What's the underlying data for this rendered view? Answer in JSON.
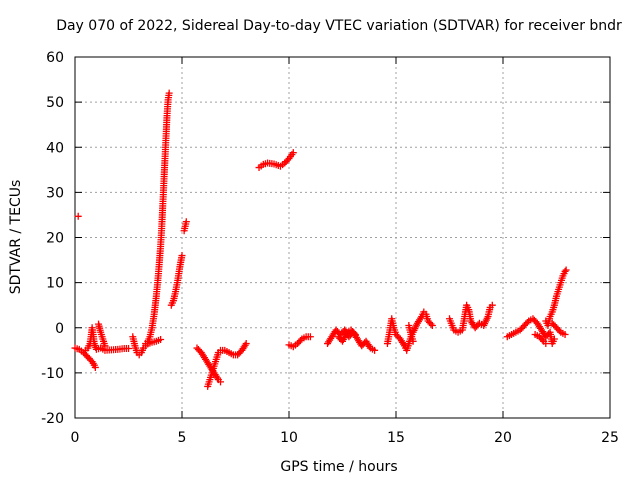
{
  "chart_data": {
    "type": "scatter",
    "title": "Day 070 of 2022, Sidereal Day-to-day VTEC variation (SDTVAR) for receiver bndr",
    "xlabel": "GPS time / hours",
    "ylabel": "SDTVAR / TECUs",
    "xlim": [
      0,
      25
    ],
    "ylim": [
      -20,
      60
    ],
    "xticks": [
      0,
      5,
      10,
      15,
      20,
      25
    ],
    "yticks": [
      -20,
      -10,
      0,
      10,
      20,
      30,
      40,
      50,
      60
    ],
    "grid": true,
    "marker": "+",
    "marker_color": "#ff0000",
    "series": [
      {
        "name": "SDTVAR",
        "segments": [
          [
            [
              0.15,
              24.7
            ]
          ],
          [
            [
              0.0,
              -4.5
            ],
            [
              0.2,
              -4.8
            ],
            [
              0.4,
              -5.5
            ],
            [
              0.6,
              -6.5
            ],
            [
              0.8,
              -7.5
            ],
            [
              0.9,
              -8.3
            ],
            [
              0.95,
              -8.8
            ]
          ],
          [
            [
              0.5,
              -5.0
            ],
            [
              0.6,
              -4.5
            ],
            [
              0.7,
              -3.5
            ],
            [
              0.75,
              -2.0
            ],
            [
              0.8,
              0.0
            ],
            [
              0.85,
              -1.5
            ],
            [
              0.9,
              -3.5
            ],
            [
              1.0,
              -4.8
            ],
            [
              1.2,
              -4.5
            ],
            [
              1.4,
              -5.0
            ],
            [
              1.7,
              -4.9
            ],
            [
              2.0,
              -4.8
            ],
            [
              2.3,
              -4.6
            ],
            [
              2.5,
              -4.6
            ]
          ],
          [
            [
              1.1,
              0.8
            ],
            [
              1.2,
              -1.0
            ],
            [
              1.3,
              -2.5
            ],
            [
              1.4,
              -4.0
            ]
          ],
          [
            [
              2.7,
              -2.0
            ],
            [
              2.8,
              -4.0
            ],
            [
              2.9,
              -5.5
            ],
            [
              3.0,
              -6.0
            ],
            [
              3.1,
              -5.5
            ],
            [
              3.2,
              -4.5
            ],
            [
              3.3,
              -4.0
            ],
            [
              3.4,
              -3.6
            ],
            [
              3.6,
              -3.2
            ],
            [
              3.8,
              -3.0
            ],
            [
              4.0,
              -2.6
            ]
          ],
          [
            [
              3.3,
              -3.5
            ],
            [
              3.4,
              -3.0
            ],
            [
              3.5,
              -2.0
            ],
            [
              3.6,
              0.0
            ],
            [
              3.7,
              3.0
            ],
            [
              3.8,
              7.0
            ],
            [
              3.9,
              12.0
            ],
            [
              4.0,
              18.0
            ],
            [
              4.05,
              22.0
            ],
            [
              4.1,
              27.0
            ],
            [
              4.15,
              32.0
            ],
            [
              4.2,
              37.0
            ],
            [
              4.25,
              42.0
            ],
            [
              4.3,
              47.0
            ],
            [
              4.35,
              50.5
            ],
            [
              4.4,
              52.0
            ]
          ],
          [
            [
              4.5,
              5.0
            ],
            [
              4.6,
              6.0
            ],
            [
              4.7,
              8.0
            ],
            [
              4.8,
              10.5
            ],
            [
              4.9,
              13.5
            ],
            [
              5.0,
              16.0
            ]
          ],
          [
            [
              5.1,
              21.5
            ],
            [
              5.15,
              22.5
            ],
            [
              5.2,
              23.5
            ]
          ],
          [
            [
              5.7,
              -4.5
            ],
            [
              5.9,
              -5.5
            ],
            [
              6.1,
              -7.0
            ],
            [
              6.3,
              -8.5
            ],
            [
              6.5,
              -10.0
            ],
            [
              6.7,
              -11.5
            ],
            [
              6.8,
              -12.0
            ]
          ],
          [
            [
              6.2,
              -13.0
            ],
            [
              6.3,
              -11.5
            ],
            [
              6.4,
              -10.0
            ],
            [
              6.5,
              -8.5
            ],
            [
              6.6,
              -7.0
            ],
            [
              6.7,
              -5.5
            ],
            [
              6.8,
              -5.0
            ],
            [
              7.0,
              -5.0
            ],
            [
              7.2,
              -5.5
            ],
            [
              7.4,
              -6.0
            ],
            [
              7.6,
              -6.0
            ],
            [
              7.8,
              -5.0
            ],
            [
              8.0,
              -3.5
            ]
          ],
          [
            [
              8.6,
              35.5
            ],
            [
              8.8,
              36.2
            ],
            [
              9.0,
              36.5
            ],
            [
              9.3,
              36.3
            ],
            [
              9.6,
              35.8
            ],
            [
              9.8,
              36.5
            ],
            [
              10.0,
              37.5
            ],
            [
              10.2,
              38.8
            ]
          ],
          [
            [
              10.0,
              -3.8
            ],
            [
              10.2,
              -4.2
            ],
            [
              10.4,
              -3.5
            ],
            [
              10.6,
              -2.5
            ],
            [
              10.8,
              -2.0
            ],
            [
              11.0,
              -2.0
            ]
          ],
          [
            [
              11.8,
              -3.5
            ],
            [
              12.0,
              -2.0
            ],
            [
              12.2,
              -0.5
            ],
            [
              12.4,
              -1.5
            ],
            [
              12.6,
              -0.5
            ],
            [
              12.8,
              -2.0
            ],
            [
              13.0,
              -1.0
            ],
            [
              13.2,
              -2.5
            ],
            [
              13.4,
              -4.0
            ],
            [
              13.6,
              -3.0
            ],
            [
              13.8,
              -4.5
            ],
            [
              14.0,
              -5.0
            ]
          ],
          [
            [
              12.3,
              -2.0
            ],
            [
              12.5,
              -3.0
            ],
            [
              12.7,
              -1.0
            ],
            [
              12.9,
              -0.5
            ],
            [
              13.1,
              -1.5
            ]
          ],
          [
            [
              14.6,
              -3.5
            ],
            [
              14.7,
              -1.0
            ],
            [
              14.8,
              2.0
            ],
            [
              14.9,
              0.0
            ],
            [
              15.0,
              -1.5
            ],
            [
              15.2,
              -2.5
            ],
            [
              15.4,
              -4.0
            ],
            [
              15.5,
              -5.0
            ],
            [
              15.7,
              -2.0
            ],
            [
              15.8,
              -1.0
            ],
            [
              16.0,
              1.0
            ],
            [
              16.2,
              2.5
            ],
            [
              16.3,
              3.5
            ],
            [
              16.4,
              3.0
            ],
            [
              16.5,
              1.5
            ],
            [
              16.7,
              0.5
            ]
          ],
          [
            [
              15.6,
              0.5
            ],
            [
              15.7,
              -1.5
            ],
            [
              15.8,
              -3.0
            ]
          ],
          [
            [
              17.5,
              2.0
            ],
            [
              17.7,
              -0.5
            ],
            [
              17.9,
              -1.0
            ],
            [
              18.1,
              -0.5
            ],
            [
              18.3,
              5.0
            ],
            [
              18.4,
              4.0
            ],
            [
              18.5,
              1.5
            ],
            [
              18.7,
              0.0
            ],
            [
              18.9,
              1.0
            ],
            [
              19.1,
              0.5
            ],
            [
              19.3,
              2.5
            ],
            [
              19.4,
              4.5
            ],
            [
              19.5,
              5.0
            ]
          ],
          [
            [
              20.2,
              -2.0
            ],
            [
              20.4,
              -1.5
            ],
            [
              20.6,
              -1.0
            ],
            [
              20.8,
              -0.5
            ],
            [
              21.0,
              0.5
            ],
            [
              21.2,
              1.5
            ],
            [
              21.4,
              2.0
            ],
            [
              21.6,
              1.0
            ],
            [
              21.8,
              -0.5
            ],
            [
              22.0,
              -2.0
            ],
            [
              22.2,
              -1.0
            ],
            [
              22.3,
              -3.5
            ],
            [
              22.4,
              -2.5
            ]
          ],
          [
            [
              21.5,
              -1.5
            ],
            [
              21.7,
              -2.0
            ],
            [
              21.9,
              -3.0
            ],
            [
              22.0,
              -3.5
            ]
          ],
          [
            [
              22.0,
              1.5
            ],
            [
              22.1,
              0.5
            ],
            [
              22.2,
              2.5
            ],
            [
              22.3,
              3.5
            ],
            [
              22.4,
              5.0
            ],
            [
              22.5,
              7.0
            ],
            [
              22.6,
              8.5
            ],
            [
              22.7,
              10.0
            ],
            [
              22.8,
              11.5
            ],
            [
              22.9,
              12.5
            ],
            [
              22.95,
              12.8
            ]
          ],
          [
            [
              22.3,
              1.0
            ],
            [
              22.5,
              0.0
            ],
            [
              22.7,
              -1.0
            ],
            [
              22.9,
              -1.5
            ]
          ]
        ]
      }
    ]
  }
}
